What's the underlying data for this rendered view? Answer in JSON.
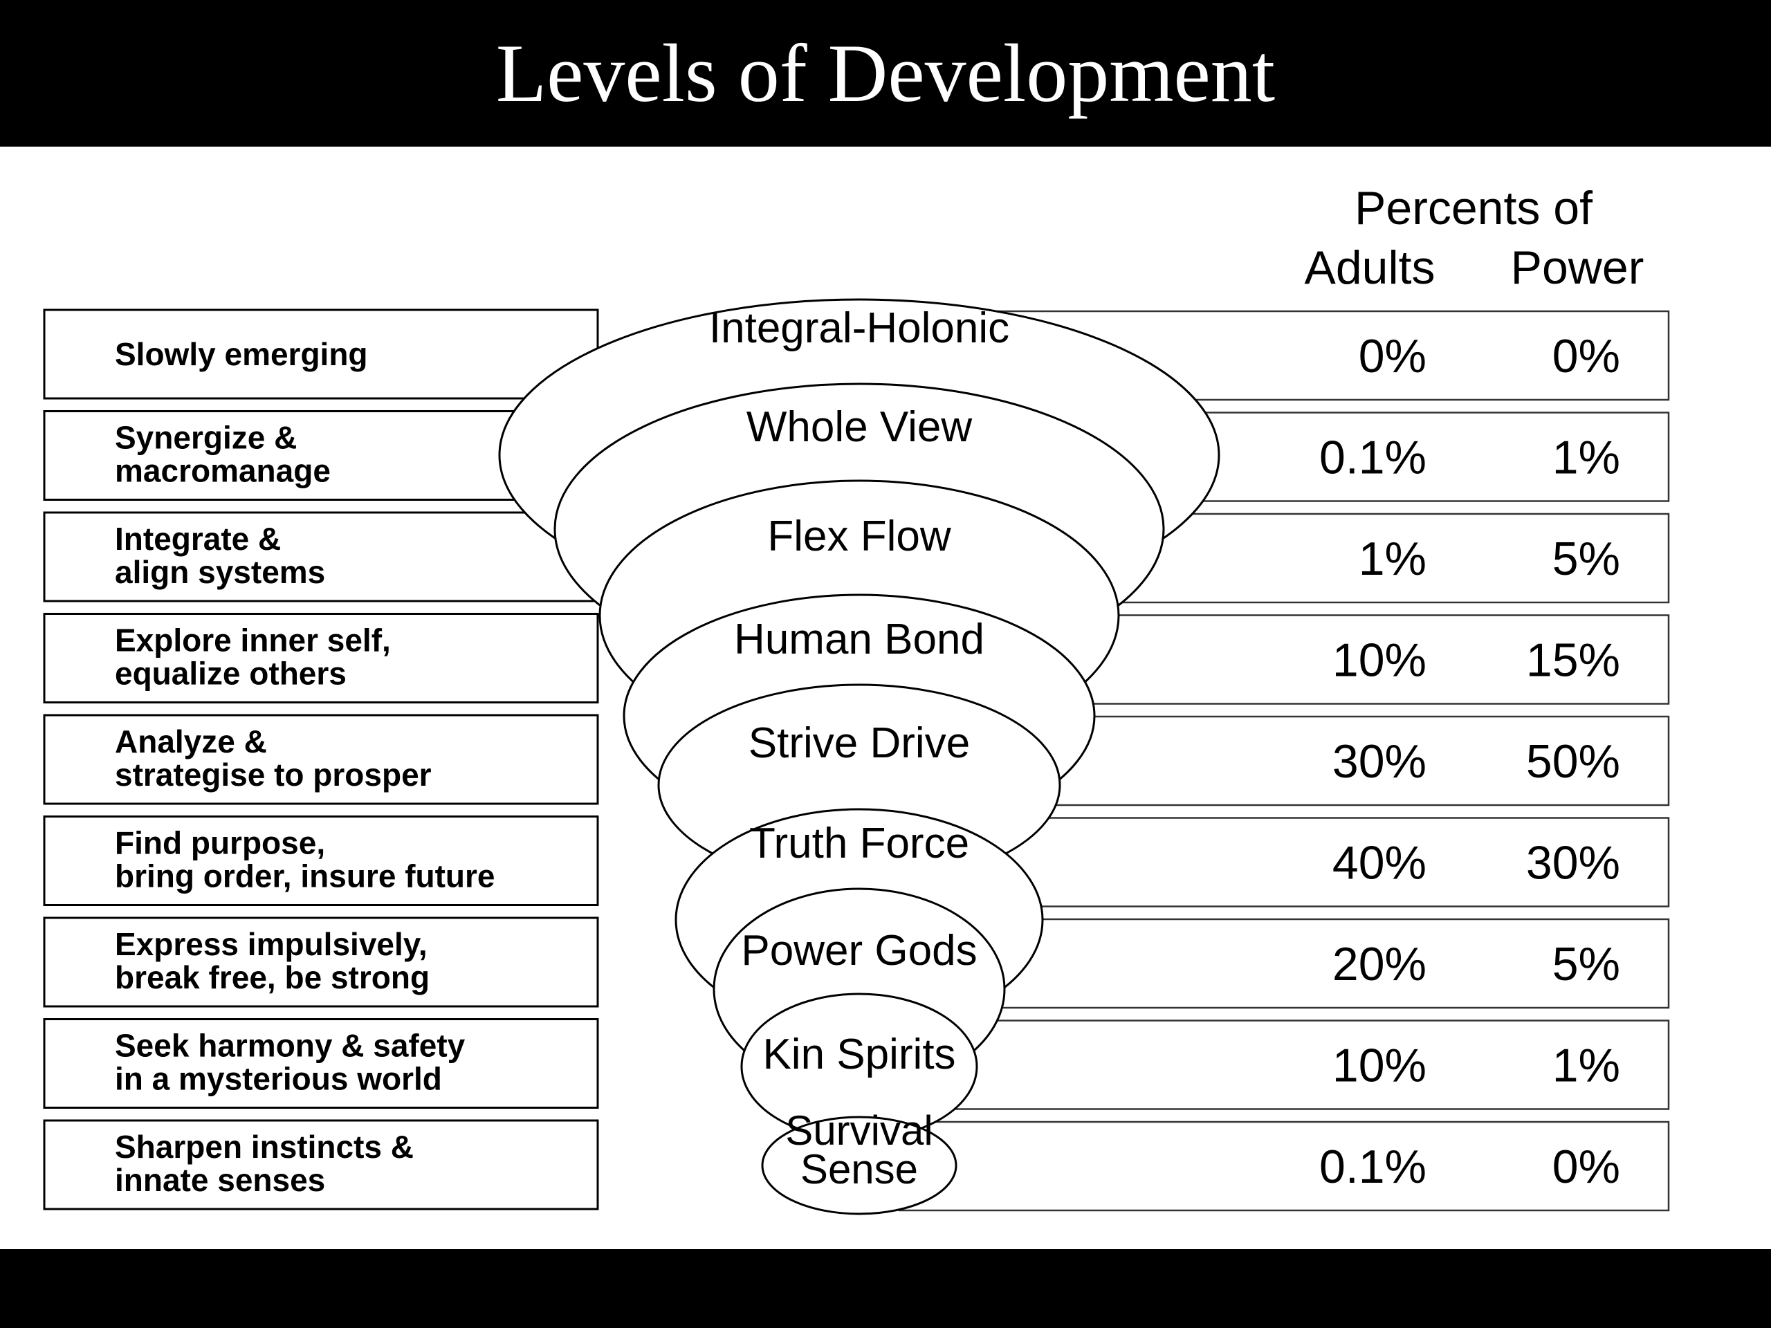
{
  "title": "Levels of Development",
  "header": {
    "line1": "Percents of",
    "adults_label": "Adults",
    "power_label": "Power"
  },
  "levels": [
    {
      "name": "Integral-Holonic",
      "name_lines": [
        "Integral-Holonic"
      ],
      "description": [
        "Slowly emerging"
      ],
      "adults": "0%",
      "power": "0%"
    },
    {
      "name": "Whole View",
      "name_lines": [
        "Whole View"
      ],
      "description": [
        "Synergize &",
        "macromanage"
      ],
      "adults": "0.1%",
      "power": "1%"
    },
    {
      "name": "Flex Flow",
      "name_lines": [
        "Flex Flow"
      ],
      "description": [
        "Integrate &",
        "align systems"
      ],
      "adults": "1%",
      "power": "5%"
    },
    {
      "name": "Human Bond",
      "name_lines": [
        "Human Bond"
      ],
      "description": [
        "Explore inner self,",
        "equalize others"
      ],
      "adults": "10%",
      "power": "15%"
    },
    {
      "name": "Strive Drive",
      "name_lines": [
        "Strive Drive"
      ],
      "description": [
        "Analyze &",
        "strategise to prosper"
      ],
      "adults": "30%",
      "power": "50%"
    },
    {
      "name": "Truth Force",
      "name_lines": [
        "Truth Force"
      ],
      "description": [
        "Find purpose,",
        "bring order, insure future"
      ],
      "adults": "40%",
      "power": "30%"
    },
    {
      "name": "Power Gods",
      "name_lines": [
        "Power Gods"
      ],
      "description": [
        "Express impulsively,",
        "break free, be strong"
      ],
      "adults": "20%",
      "power": "5%"
    },
    {
      "name": "Kin Spirits",
      "name_lines": [
        "Kin Spirits"
      ],
      "description": [
        "Seek harmony & safety",
        "in a mysterious world"
      ],
      "adults": "10%",
      "power": "1%"
    },
    {
      "name": "Survival Sense",
      "name_lines": [
        "Survival",
        "Sense"
      ],
      "description": [
        "Sharpen instincts &",
        "innate senses"
      ],
      "adults": "0.1%",
      "power": "0%"
    }
  ]
}
